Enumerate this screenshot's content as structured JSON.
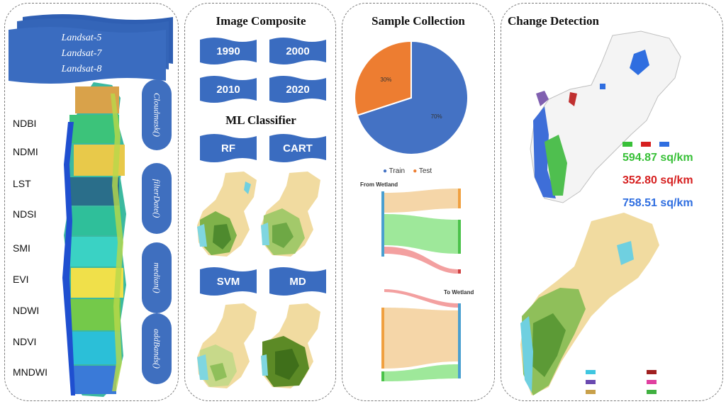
{
  "panel1": {
    "landsat": [
      "Landsat-5",
      "Landsat-7",
      "Landsat-8"
    ],
    "indices": [
      "NDBI",
      "NDMI",
      "LST",
      "NDSI",
      "SMI",
      "EVI",
      "NDWI",
      "NDVI",
      "MNDWI"
    ],
    "pills": [
      "Cloudmask()",
      "filterDate()",
      "median()",
      "addBands()"
    ]
  },
  "panel2": {
    "title": "Image Composite",
    "years": [
      "1990",
      "2000",
      "2010",
      "2020"
    ],
    "classifier_title": "ML Classifier",
    "classifiers": [
      "RF",
      "CART",
      "SVM",
      "MD"
    ]
  },
  "panel3": {
    "title": "Sample Collection",
    "legend": [
      "Train",
      "Test"
    ],
    "pie_labels": [
      "30%",
      "70%"
    ],
    "from_label": "From Wetland",
    "to_label": "To Wetland"
  },
  "chart_data": {
    "type": "pie",
    "categories": [
      "Train",
      "Test"
    ],
    "values": [
      70,
      30
    ],
    "colors": [
      "#4472c4",
      "#ed7d31"
    ]
  },
  "panel4": {
    "title": "Change Detection",
    "stats": [
      "594.87 sq/km",
      "352.80 sq/km",
      "758.51 sq/km"
    ],
    "stat_colors": [
      "#38c038",
      "#d62020",
      "#2f6ee0"
    ]
  }
}
